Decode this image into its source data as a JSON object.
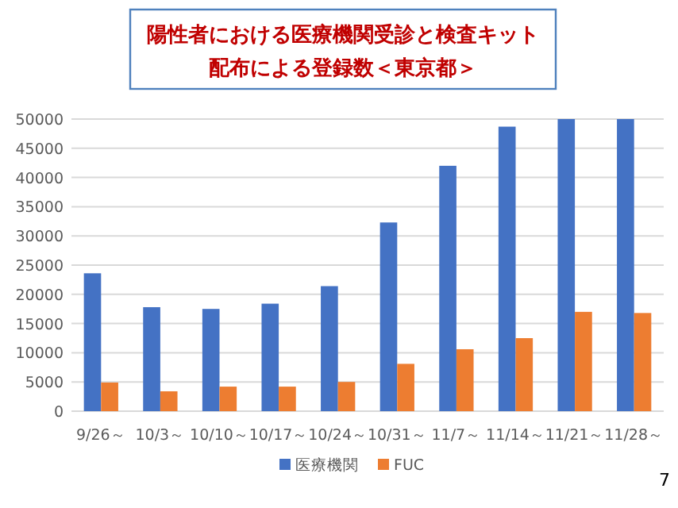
{
  "chart_data": {
    "type": "bar",
    "title": "陽性者における医療機関受診と検査キット配布による登録数＜東京都＞",
    "categories": [
      "9/26～",
      "10/3～",
      "10/10～",
      "10/17～",
      "10/24～",
      "10/31～",
      "11/7～",
      "11/14～",
      "11/21～",
      "11/28～"
    ],
    "series": [
      {
        "name": "医療機関",
        "color": "#4472c4",
        "values": [
          23600,
          17800,
          17500,
          18400,
          21400,
          32300,
          42000,
          48700,
          50000,
          50000
        ]
      },
      {
        "name": "FUC",
        "color": "#ed7d31",
        "values": [
          4900,
          3400,
          4200,
          4200,
          5000,
          8100,
          10600,
          12500,
          17000,
          16800
        ]
      }
    ],
    "ylim": [
      0,
      50000
    ],
    "yticks": [
      0,
      5000,
      10000,
      15000,
      20000,
      25000,
      30000,
      35000,
      40000,
      45000,
      50000
    ],
    "grid": "y",
    "legend": "bottom",
    "annotations": [
      "7"
    ]
  }
}
